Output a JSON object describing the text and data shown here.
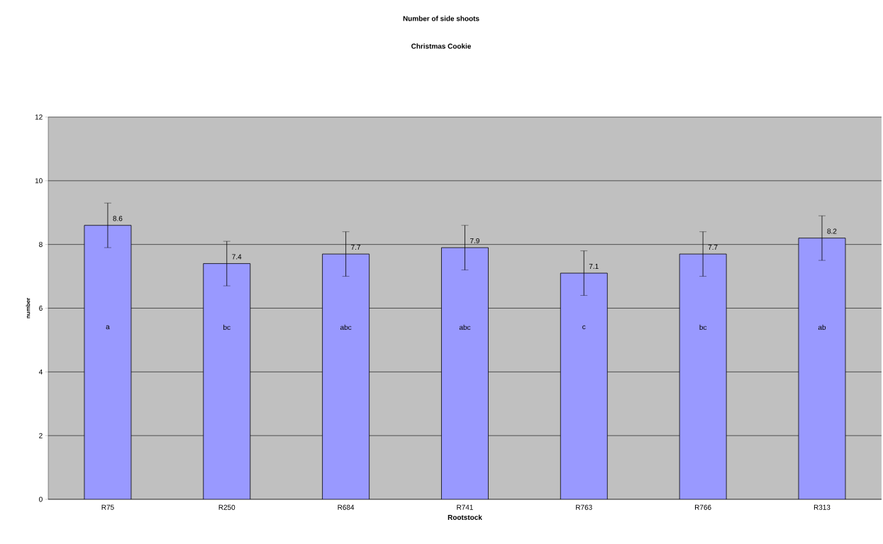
{
  "chart_data": {
    "type": "bar",
    "title": "Number of side shoots",
    "subtitle": "Christmas Cookie",
    "xlabel": "Rootstock",
    "ylabel": "number",
    "categories": [
      "R75",
      "R250",
      "R684",
      "R741",
      "R763",
      "R766",
      "R313"
    ],
    "values": [
      8.6,
      7.4,
      7.7,
      7.9,
      7.1,
      7.7,
      8.2
    ],
    "errors": [
      0.7,
      0.7,
      0.7,
      0.7,
      0.7,
      0.7,
      0.7
    ],
    "color": "#9999ff",
    "ylim": [
      0,
      12
    ],
    "yticks": [
      0,
      2,
      4,
      6,
      8,
      10,
      12
    ],
    "grid": "y",
    "data_labels": true,
    "annotations": [
      "a",
      "bc",
      "abc",
      "abc",
      "c",
      "bc",
      "ab"
    ]
  }
}
